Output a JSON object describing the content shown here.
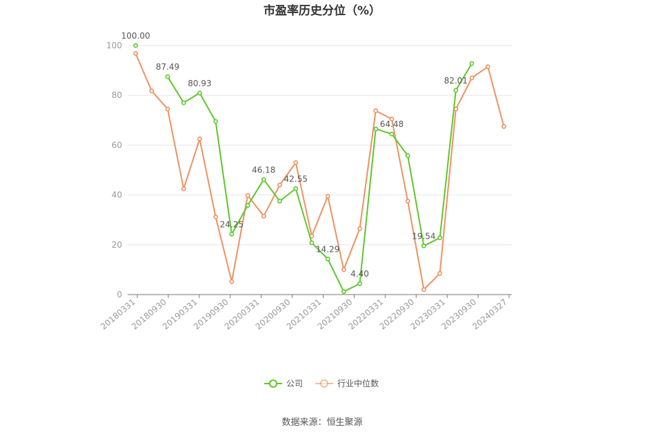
{
  "chart_data": {
    "type": "line",
    "title": "市盈率历史分位（%）",
    "source": "数据来源：恒生聚源",
    "ylim": [
      0,
      100
    ],
    "yticks": [
      0,
      20,
      40,
      60,
      80,
      100
    ],
    "x_tick_labels": [
      "20180331",
      "20180930",
      "20190331",
      "20190930",
      "20200331",
      "20200930",
      "20210331",
      "20210930",
      "20220331",
      "20220930",
      "20230331",
      "20230930",
      "20240327"
    ],
    "x_points": 24,
    "series": [
      {
        "name": "公司",
        "color": "#5cc72a",
        "values": [
          100.0,
          null,
          87.49,
          77.0,
          80.93,
          69.5,
          24.25,
          35.8,
          46.18,
          37.5,
          42.55,
          20.8,
          14.29,
          1.2,
          4.4,
          66.5,
          64.48,
          55.8,
          19.54,
          22.8,
          82.01,
          92.8,
          null,
          null
        ],
        "labels": [
          [
            0,
            "100.00"
          ],
          [
            2,
            "87.49"
          ],
          [
            4,
            "80.93"
          ],
          [
            6,
            "24.25"
          ],
          [
            8,
            "46.18"
          ],
          [
            10,
            "42.55"
          ],
          [
            12,
            "14.29"
          ],
          [
            14,
            "4.40"
          ],
          [
            16,
            "64.48"
          ],
          [
            18,
            "19.54"
          ],
          [
            20,
            "82.01"
          ]
        ]
      },
      {
        "name": "行业中位数",
        "color": "#f0905f",
        "values": [
          96.8,
          81.8,
          74.5,
          42.5,
          62.5,
          31.2,
          5.2,
          39.8,
          31.5,
          44.0,
          53.0,
          23.5,
          39.5,
          10.0,
          26.5,
          73.8,
          70.5,
          37.5,
          2.0,
          8.5,
          74.5,
          87.0,
          91.5,
          67.5
        ],
        "labels": []
      }
    ]
  }
}
